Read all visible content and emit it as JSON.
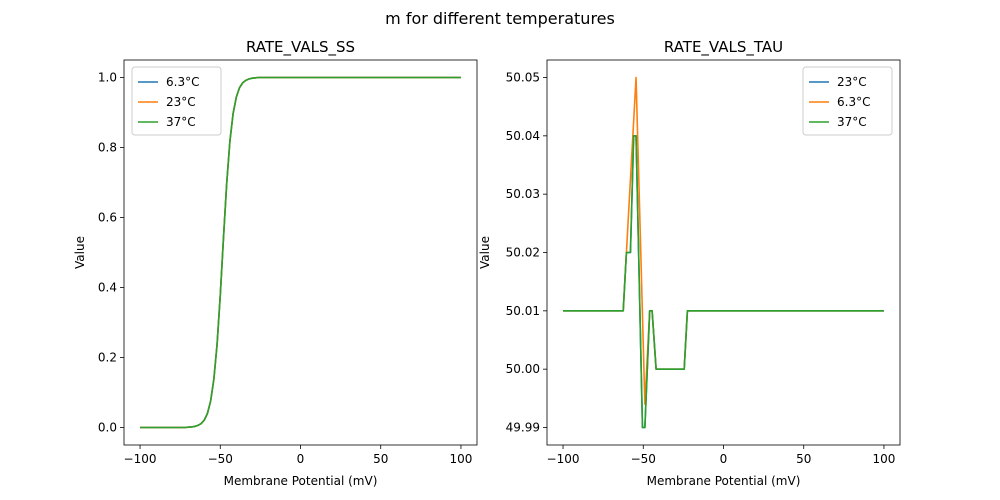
{
  "chart_data": [
    {
      "type": "line",
      "suptitle": "m for different temperatures",
      "title": "RATE_VALS_SS",
      "xlabel": "Membrane Potential (mV)",
      "ylabel": "Value",
      "xlim": [
        -110,
        110
      ],
      "ylim": [
        -0.05,
        1.05
      ],
      "xticks": [
        -100,
        -50,
        0,
        50,
        100
      ],
      "yticks": [
        0.0,
        0.2,
        0.4,
        0.6,
        0.8,
        1.0
      ],
      "ytick_labels": [
        "0.0",
        "0.2",
        "0.4",
        "0.6",
        "0.8",
        "1.0"
      ],
      "grid": false,
      "legend_placement": "upper-left",
      "x": [
        -100,
        -90,
        -80,
        -72,
        -70,
        -68,
        -66,
        -64,
        -62,
        -60,
        -58,
        -56,
        -54,
        -52,
        -50,
        -48,
        -46,
        -44,
        -42,
        -40,
        -38,
        -36,
        -34,
        -32,
        -30,
        -28,
        -26,
        -20,
        0,
        50,
        100
      ],
      "series": [
        {
          "name": "6.3°C",
          "color": "#1f77b4",
          "values": [
            0,
            0,
            0,
            0,
            0.001,
            0.0015,
            0.003,
            0.006,
            0.011,
            0.021,
            0.04,
            0.076,
            0.138,
            0.237,
            0.378,
            0.542,
            0.697,
            0.818,
            0.897,
            0.944,
            0.971,
            0.985,
            0.992,
            0.996,
            0.998,
            0.999,
            1,
            1,
            1,
            1,
            1
          ]
        },
        {
          "name": "23°C",
          "color": "#ff7f0e",
          "values": [
            0,
            0,
            0,
            0,
            0.001,
            0.0015,
            0.003,
            0.006,
            0.011,
            0.021,
            0.04,
            0.076,
            0.138,
            0.237,
            0.378,
            0.542,
            0.697,
            0.818,
            0.897,
            0.944,
            0.971,
            0.985,
            0.992,
            0.996,
            0.998,
            0.999,
            1,
            1,
            1,
            1,
            1
          ]
        },
        {
          "name": "37°C",
          "color": "#2ca02c",
          "values": [
            0,
            0,
            0,
            0,
            0.001,
            0.0015,
            0.003,
            0.006,
            0.011,
            0.021,
            0.04,
            0.076,
            0.138,
            0.237,
            0.378,
            0.542,
            0.697,
            0.818,
            0.897,
            0.944,
            0.971,
            0.985,
            0.992,
            0.996,
            0.998,
            0.999,
            1,
            1,
            1,
            1,
            1
          ]
        }
      ]
    },
    {
      "type": "line",
      "title": "RATE_VALS_TAU",
      "xlabel": "Membrane Potential (mV)",
      "ylabel": "Value",
      "xlim": [
        -110,
        110
      ],
      "ylim": [
        49.987,
        50.053
      ],
      "xticks": [
        -100,
        -50,
        0,
        50,
        100
      ],
      "yticks": [
        49.99,
        50.0,
        50.01,
        50.02,
        50.03,
        50.04,
        50.05
      ],
      "ytick_labels": [
        "49.99",
        "50.00",
        "50.01",
        "50.02",
        "50.03",
        "50.04",
        "50.05"
      ],
      "grid": false,
      "legend_placement": "upper-right",
      "series": [
        {
          "name": "23°C",
          "color": "#1f77b4",
          "x": [
            -100,
            -62.5,
            -60.5,
            -58,
            -56,
            -54.5,
            -50.5,
            -49,
            -46,
            -44.5,
            -42,
            -24.5,
            -22.5,
            100
          ],
          "values": [
            50.01,
            50.01,
            50.02,
            50.02,
            50.04,
            50.04,
            49.99,
            49.99,
            50.01,
            50.01,
            50.0,
            50.0,
            50.01,
            50.01
          ]
        },
        {
          "name": "6.3°C",
          "color": "#ff7f0e",
          "x": [
            -100,
            -62.5,
            -60.5,
            -54.5,
            -49,
            -46,
            -44.5,
            -42,
            -24.5,
            -22.5,
            100
          ],
          "values": [
            50.01,
            50.01,
            50.02,
            50.05,
            49.994,
            50.01,
            50.01,
            50.0,
            50.0,
            50.01,
            50.01
          ]
        },
        {
          "name": "37°C",
          "color": "#2ca02c",
          "x": [
            -100,
            -62.5,
            -60.5,
            -58,
            -56,
            -54.5,
            -50.5,
            -49,
            -46,
            -44.5,
            -42,
            -24.5,
            -22.5,
            100
          ],
          "values": [
            50.01,
            50.01,
            50.02,
            50.02,
            50.04,
            50.04,
            49.99,
            49.99,
            50.01,
            50.01,
            50.0,
            50.0,
            50.01,
            50.01
          ]
        }
      ]
    }
  ]
}
